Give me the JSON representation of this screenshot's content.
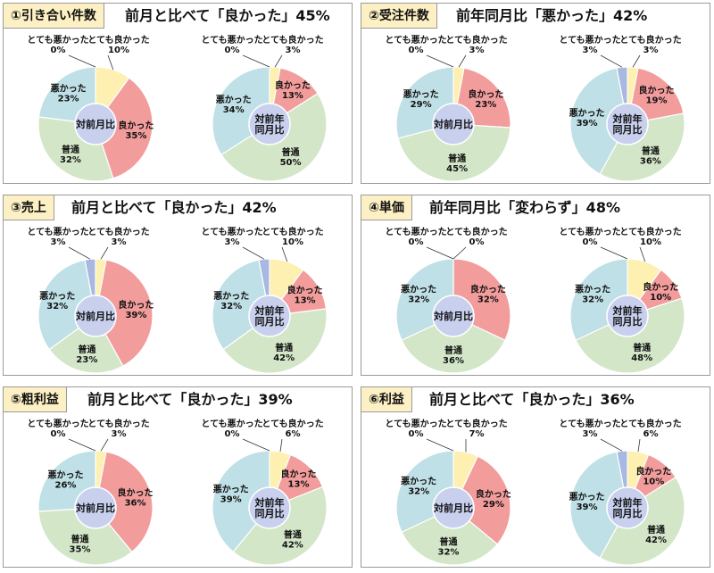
{
  "colors": {
    "very_good": "#fdf0b0",
    "good": "#f29c9c",
    "normal": "#d3e6c8",
    "bad": "#bfe0e6",
    "very_bad": "#a8b8e0",
    "center": "#c8d0ee",
    "tag_bg": "#fdf0c4"
  },
  "chart_data": [
    {
      "type": "pie",
      "tag": "①引き合い件数",
      "headline": "前月と比べて「良かった」45%",
      "categories": [
        "とても良かった",
        "良かった",
        "普通",
        "悪かった",
        "とても悪かった"
      ],
      "pies": [
        {
          "center": "対前月比",
          "values": [
            10,
            35,
            32,
            23,
            0
          ],
          "labels": [
            "とても良かった",
            "良かった",
            "普通",
            "悪かった",
            "とても悪かった"
          ],
          "value_labels": [
            "10%",
            "35%",
            "32%",
            "23%",
            "0%"
          ]
        },
        {
          "center": "対前年\n同月比",
          "values": [
            3,
            13,
            50,
            34,
            0
          ],
          "labels": [
            "とても良かった",
            "良かった",
            "普通",
            "悪かった",
            "とても悪かった"
          ],
          "value_labels": [
            "3%",
            "13%",
            "50%",
            "34%",
            "0%"
          ]
        }
      ]
    },
    {
      "type": "pie",
      "tag": "②受注件数",
      "headline": "前年同月比「悪かった」42%",
      "categories": [
        "とても良かった",
        "良かった",
        "普通",
        "悪かった",
        "とても悪かった"
      ],
      "pies": [
        {
          "center": "対前月比",
          "values": [
            3,
            23,
            45,
            29,
            0
          ],
          "labels": [
            "とても良かった",
            "良かった",
            "普通",
            "悪かった",
            "とても悪かった"
          ],
          "value_labels": [
            "3%",
            "23%",
            "45%",
            "29%",
            "0%"
          ]
        },
        {
          "center": "対前年\n同月比",
          "values": [
            3,
            19,
            36,
            39,
            3
          ],
          "labels": [
            "とても良かった",
            "良かった",
            "普通",
            "悪かった",
            "とても悪かった"
          ],
          "value_labels": [
            "3%",
            "19%",
            "36%",
            "39%",
            "3%"
          ]
        }
      ]
    },
    {
      "type": "pie",
      "tag": "③売上",
      "headline": "前月と比べて「良かった」42%",
      "categories": [
        "とても良かった",
        "良かった",
        "普通",
        "悪かった",
        "とても悪かった"
      ],
      "pies": [
        {
          "center": "対前月比",
          "values": [
            3,
            39,
            23,
            32,
            3
          ],
          "labels": [
            "とても良かった",
            "良かった",
            "普通",
            "悪かった",
            "とても悪かった"
          ],
          "value_labels": [
            "3%",
            "39%",
            "23%",
            "32%",
            "3%"
          ]
        },
        {
          "center": "対前年\n同月比",
          "values": [
            10,
            13,
            42,
            32,
            3
          ],
          "labels": [
            "とても良かった",
            "良かった",
            "普通",
            "悪かった",
            "とても悪かった"
          ],
          "value_labels": [
            "10%",
            "13%",
            "42%",
            "32%",
            "3%"
          ]
        }
      ]
    },
    {
      "type": "pie",
      "tag": "④単価",
      "headline": "前年同月比「変わらず」48%",
      "categories": [
        "とても良かった",
        "良かった",
        "普通",
        "悪かった",
        "とても悪かった"
      ],
      "pies": [
        {
          "center": "対前月比",
          "values": [
            0,
            32,
            36,
            32,
            0
          ],
          "labels": [
            "とても良かった",
            "良かった",
            "普通",
            "悪かった",
            "とても悪かった"
          ],
          "value_labels": [
            "0%",
            "32%",
            "36%",
            "32%",
            "0%"
          ]
        },
        {
          "center": "対前年\n同月比",
          "values": [
            10,
            10,
            48,
            32,
            0
          ],
          "labels": [
            "とても良かった",
            "良かった",
            "普通",
            "悪かった",
            "とても悪かった"
          ],
          "value_labels": [
            "10%",
            "10%",
            "48%",
            "32%",
            "0%"
          ]
        }
      ]
    },
    {
      "type": "pie",
      "tag": "⑤粗利益",
      "headline": "前月と比べて「良かった」39%",
      "categories": [
        "とても良かった",
        "良かった",
        "普通",
        "悪かった",
        "とても悪かった"
      ],
      "pies": [
        {
          "center": "対前月比",
          "values": [
            3,
            36,
            35,
            26,
            0
          ],
          "labels": [
            "とても良かった",
            "良かった",
            "普通",
            "悪かった",
            "とても悪かった"
          ],
          "value_labels": [
            "3%",
            "36%",
            "35%",
            "26%",
            "0%"
          ]
        },
        {
          "center": "対前年\n同月比",
          "values": [
            6,
            13,
            42,
            39,
            0
          ],
          "labels": [
            "とても良かった",
            "良かった",
            "普通",
            "悪かった",
            "とても悪かった"
          ],
          "value_labels": [
            "6%",
            "13%",
            "42%",
            "39%",
            "0%"
          ]
        }
      ]
    },
    {
      "type": "pie",
      "tag": "⑥利益",
      "headline": "前月と比べて「良かった」36%",
      "categories": [
        "とても良かった",
        "良かった",
        "普通",
        "悪かった",
        "とても悪かった"
      ],
      "pies": [
        {
          "center": "対前月比",
          "values": [
            7,
            29,
            32,
            32,
            0
          ],
          "labels": [
            "とても良かった",
            "良かった",
            "普通",
            "悪かった",
            "とても悪かった"
          ],
          "value_labels": [
            "7%",
            "29%",
            "32%",
            "32%",
            "0%"
          ]
        },
        {
          "center": "対前年\n同月比",
          "values": [
            6,
            10,
            42,
            39,
            3
          ],
          "labels": [
            "とても良かった",
            "良かった",
            "普通",
            "悪かった",
            "とても悪かった"
          ],
          "value_labels": [
            "6%",
            "10%",
            "42%",
            "39%",
            "3%"
          ]
        }
      ]
    }
  ]
}
